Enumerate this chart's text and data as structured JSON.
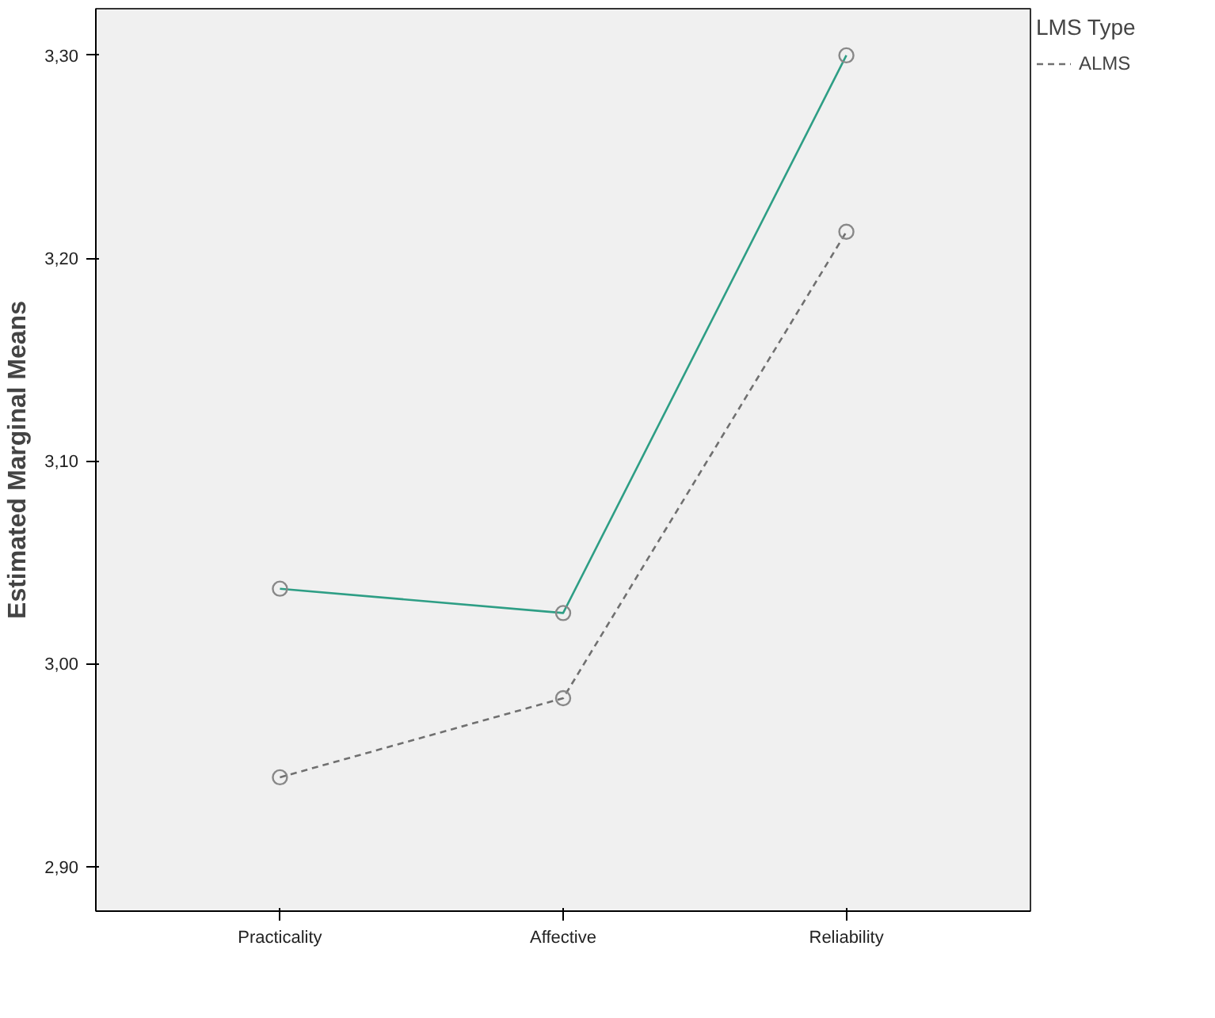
{
  "chart_data": {
    "type": "line",
    "ylabel": "Estimated Marginal Means",
    "legend_title": "LMS Type",
    "categories": [
      "Practicality",
      "Affective",
      "Reliability"
    ],
    "series": [
      {
        "name": "ALMS",
        "color": "#707070",
        "line_style": "dashed",
        "values": [
          2.944,
          2.983,
          3.213
        ]
      },
      {
        "color": "#2e9e85",
        "line_style": "solid",
        "values": [
          3.037,
          3.025,
          3.3
        ]
      }
    ],
    "ylim": [
      2.878,
      3.323
    ],
    "yticks": [
      {
        "value": 2.9,
        "label": "2,90"
      },
      {
        "value": 3.0,
        "label": "3,00"
      },
      {
        "value": 3.1,
        "label": "3,10"
      },
      {
        "value": 3.2,
        "label": "3,20"
      },
      {
        "value": 3.3,
        "label": "3,30"
      }
    ],
    "marker": "circle",
    "grid": false,
    "legend": "right"
  }
}
